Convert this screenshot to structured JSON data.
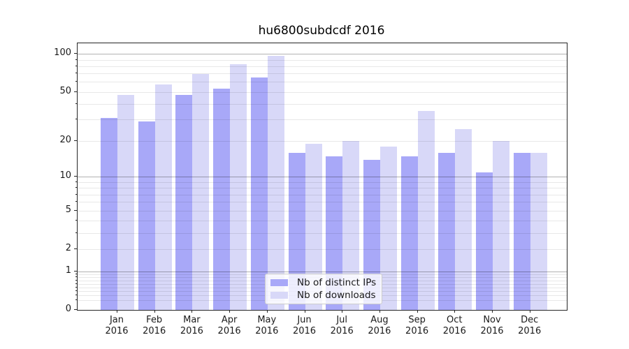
{
  "chart_data": {
    "type": "bar",
    "title": "hu6800subdcdf 2016",
    "categories": [
      "Jan 2016",
      "Feb 2016",
      "Mar 2016",
      "Apr 2016",
      "May 2016",
      "Jun 2016",
      "Jul 2016",
      "Aug 2016",
      "Sep 2016",
      "Oct 2016",
      "Nov 2016",
      "Dec 2016"
    ],
    "series": [
      {
        "name": "Nb of distinct IPs",
        "color": "#a8a8f8",
        "values": [
          31,
          29,
          47,
          53,
          65,
          16,
          15,
          14,
          15,
          16,
          11,
          16
        ]
      },
      {
        "name": "Nb of downloads",
        "color": "#d8d8f8",
        "values": [
          47,
          57,
          69,
          83,
          96,
          19,
          20,
          18,
          35,
          25,
          20,
          16
        ]
      }
    ],
    "xlabel": "",
    "ylabel": "",
    "yscale": "log1p",
    "ylim": [
      0,
      121
    ],
    "y_ticks": [
      100,
      50,
      20,
      10,
      5,
      2,
      1,
      0
    ],
    "y_tick_labels": [
      "100",
      "50",
      "20",
      "10",
      "5",
      "2",
      "1",
      "0"
    ],
    "y_minor_grid_values": [
      0.2,
      0.3,
      0.4,
      0.5,
      0.6,
      0.7,
      0.8,
      0.9,
      2,
      3,
      4,
      5,
      6,
      7,
      8,
      9,
      20,
      30,
      40,
      50,
      60,
      70,
      80,
      90
    ],
    "y_major_grid_values": [
      1,
      10,
      100
    ],
    "grid": true,
    "grid_minor_color": "rgba(0,0,0,0.09)",
    "grid_major_color": "rgba(0,0,0,0.30)",
    "spine_color": "#262626",
    "background_color": "#ffffff",
    "legend_position": "lower center",
    "legend_border_color": "#cccccc"
  }
}
